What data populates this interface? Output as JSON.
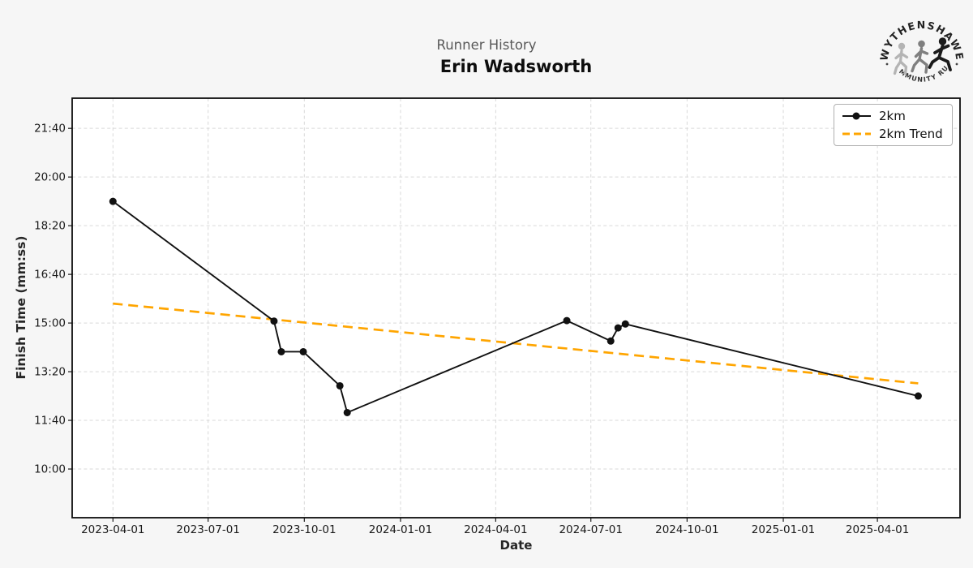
{
  "header": {
    "subtitle": "Runner History",
    "title": "Erin Wadsworth"
  },
  "logo": {
    "top_text": "WYTHENSHAWE",
    "bottom_text": "COMMUNITY RUN"
  },
  "chart_data": {
    "type": "line",
    "title": "Erin Wadsworth",
    "subtitle": "Runner History",
    "xlabel": "Date",
    "ylabel": "Finish Time (mm:ss)",
    "grid": true,
    "legend_position": "top-right",
    "x_ticks": [
      "2023-04-01",
      "2023-07-01",
      "2023-10-01",
      "2024-01-01",
      "2024-04-01",
      "2024-07-01",
      "2024-10-01",
      "2025-01-01",
      "2025-04-01"
    ],
    "y_ticks": [
      "21:40",
      "20:00",
      "18:20",
      "16:40",
      "15:00",
      "13:20",
      "11:40",
      "10:00"
    ],
    "xlim": [
      "2023-02-21",
      "2025-06-19"
    ],
    "ylim_seconds": [
      500,
      1362
    ],
    "series": [
      {
        "name": "2km",
        "color": "#111111",
        "style": "solid-markers",
        "points": [
          {
            "date": "2023-04-01",
            "time": "19:10"
          },
          {
            "date": "2023-09-02",
            "time": "15:04"
          },
          {
            "date": "2023-09-09",
            "time": "14:01"
          },
          {
            "date": "2023-09-30",
            "time": "14:01"
          },
          {
            "date": "2023-11-04",
            "time": "12:51"
          },
          {
            "date": "2023-11-11",
            "time": "11:56"
          },
          {
            "date": "2024-06-08",
            "time": "15:05"
          },
          {
            "date": "2024-07-20",
            "time": "14:23"
          },
          {
            "date": "2024-07-27",
            "time": "14:50"
          },
          {
            "date": "2024-08-03",
            "time": "14:58"
          },
          {
            "date": "2025-05-10",
            "time": "12:30"
          }
        ]
      },
      {
        "name": "2km Trend",
        "color": "#FFA500",
        "style": "dashed",
        "points": [
          {
            "date": "2023-04-01",
            "time": "15:40"
          },
          {
            "date": "2025-05-10",
            "time": "12:56"
          }
        ]
      }
    ]
  }
}
